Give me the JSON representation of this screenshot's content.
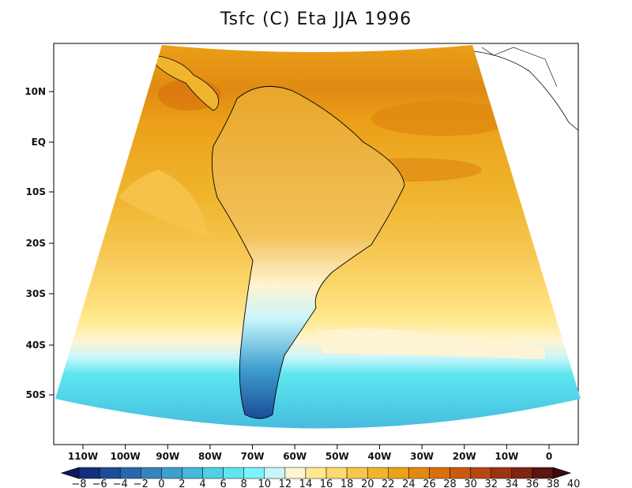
{
  "title": "Tsfc (C) Eta JJA 1996",
  "map": {
    "y_labels": [
      "10N",
      "EQ",
      "10S",
      "20S",
      "30S",
      "40S",
      "50S"
    ],
    "x_labels": [
      "110W",
      "100W",
      "90W",
      "80W",
      "70W",
      "60W",
      "50W",
      "40W",
      "30W",
      "20W",
      "10W",
      "0"
    ]
  },
  "colorbar": {
    "labels": [
      "-8",
      "-6",
      "-4",
      "-2",
      "0",
      "2",
      "4",
      "6",
      "8",
      "10",
      "12",
      "14",
      "16",
      "18",
      "20",
      "22",
      "24",
      "26",
      "28",
      "30",
      "32",
      "34",
      "36",
      "38",
      "40"
    ],
    "colors": [
      "#0b1a5c",
      "#12307e",
      "#1b4c97",
      "#2768ab",
      "#3684bd",
      "#3f9fcf",
      "#46b8dc",
      "#4fd0e6",
      "#5ee6ef",
      "#7ff3f7",
      "#c9f6fb",
      "#fff4d2",
      "#ffe98f",
      "#fcd971",
      "#f6c64f",
      "#f0b52f",
      "#eba119",
      "#e4890f",
      "#d8700e",
      "#c85a0f",
      "#b44710",
      "#9b3511",
      "#7f2412",
      "#5e1410",
      "#3e0a0a"
    ]
  }
}
